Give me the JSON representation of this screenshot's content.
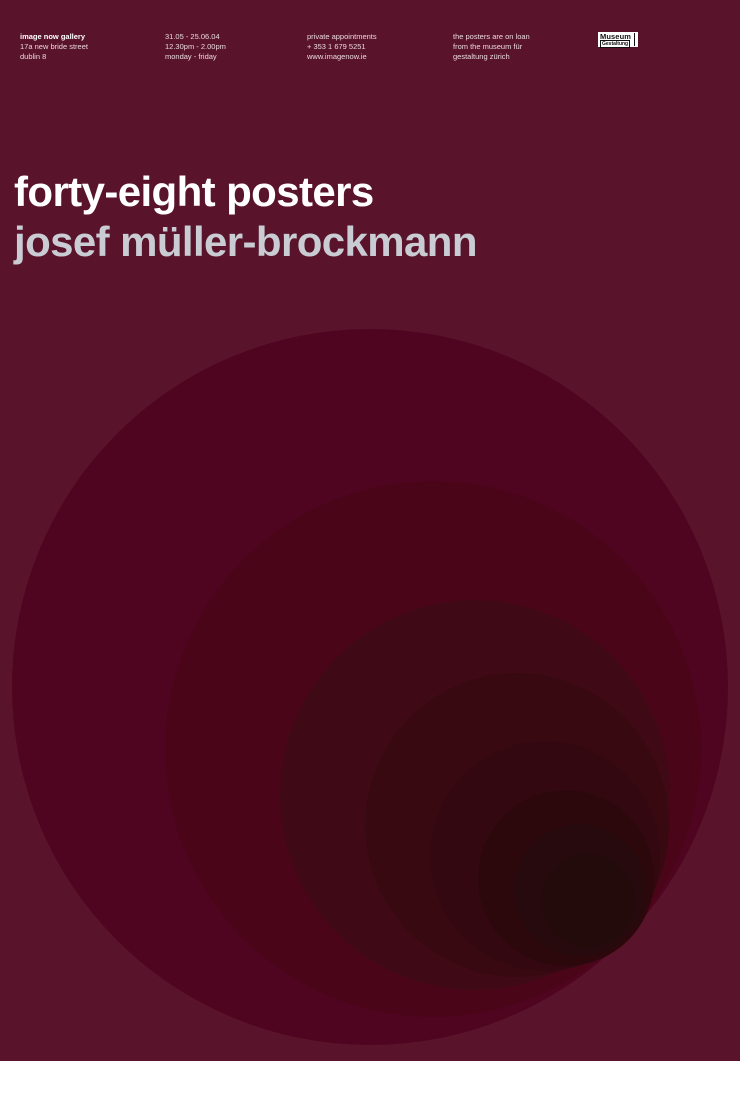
{
  "info": {
    "gallery": {
      "name": "image now gallery",
      "street": "17a new bride street",
      "city": "dublin 8"
    },
    "dates": {
      "range": "31.05 - 25.06.04",
      "hours": "12.30pm - 2.00pm",
      "days": "monday - friday"
    },
    "contact": {
      "appointments": "private appointments",
      "phone": "+ 353 1 679 5251",
      "website": "www.imagenow.ie"
    },
    "loan": {
      "line1": "the posters are on loan",
      "line2": "from the museum für",
      "line3": "gestaltung zürich"
    }
  },
  "logo": {
    "line1": "Museum",
    "line2": "Gestaltung"
  },
  "title": "forty-eight posters",
  "subtitle": "josef müller-brockmann",
  "colors": {
    "background": "#59142b",
    "title": "#ffffff",
    "subtitle": "#c9ccd3",
    "circles": [
      "#4f0520",
      "#4a0519",
      "#3f0a15",
      "#390912",
      "#330810",
      "#2c080d",
      "#270a0d",
      "#230b0c"
    ]
  }
}
